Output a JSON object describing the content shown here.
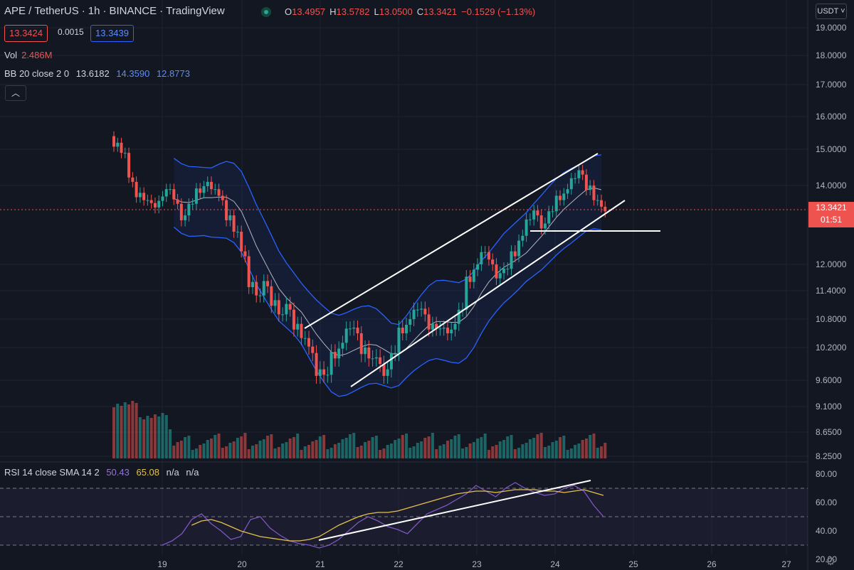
{
  "header": {
    "symbol": "APE / TetherUS",
    "interval": "1h",
    "exchange": "BINANCE",
    "source": "TradingView",
    "ohlc": {
      "o_label": "O",
      "o": "13.4957",
      "h_label": "H",
      "h": "13.5782",
      "l_label": "L",
      "l": "13.0500",
      "c_label": "C",
      "c": "13.3421",
      "change": "−0.1529 (−1.13%)"
    }
  },
  "order": {
    "bid": "13.3424",
    "spread": "0.0015",
    "ask": "13.3439"
  },
  "volume": {
    "label": "Vol",
    "value": "2.486M"
  },
  "bollinger": {
    "label": "BB 20 close 2 0",
    "basis": "13.6182",
    "upper": "14.3590",
    "lower": "12.8773"
  },
  "rsi": {
    "label": "RSI 14 close SMA 14 2",
    "rsi": "50.43",
    "sma": "65.08",
    "na1": "n/a",
    "na2": "n/a"
  },
  "currency": "USDT",
  "last_price": {
    "price": "13.3421",
    "countdown": "01:51"
  },
  "colors": {
    "bg": "#131722",
    "up": "#26a69a",
    "down": "#ef5350",
    "band": "#2962ff",
    "rsi": "#7e57c2",
    "sma": "#e6c04a"
  },
  "chart_data": {
    "type": "candlestick",
    "x_ticks": [
      "19",
      "20",
      "21",
      "22",
      "23",
      "24",
      "25",
      "26",
      "27"
    ],
    "y_ticks": [
      "19.0000",
      "18.0000",
      "17.0000",
      "16.0000",
      "15.0000",
      "14.0000",
      "12.0000",
      "11.4000",
      "10.8000",
      "10.2000",
      "9.6000",
      "9.1000",
      "8.6500",
      "8.2500"
    ],
    "rsi_ticks": [
      "80.00",
      "60.00",
      "40.00",
      "20.00"
    ],
    "close_path": [
      15.2,
      14.9,
      14.1,
      13.8,
      13.6,
      13.4,
      13.7,
      13.9,
      13.5,
      13.2,
      13.5,
      13.8,
      14.1,
      13.9,
      13.6,
      13.2,
      12.8,
      12.2,
      11.6,
      11.3,
      11.5,
      11.2,
      10.9,
      11.0,
      10.7,
      10.4,
      10.1,
      9.8,
      9.7,
      10.0,
      10.3,
      10.6,
      10.5,
      10.2,
      10.0,
      9.9,
      9.8,
      10.1,
      10.5,
      10.8,
      11.0,
      10.9,
      10.7,
      10.6,
      10.5,
      10.7,
      11.0,
      11.6,
      12.0,
      12.3,
      12.0,
      11.8,
      11.9,
      12.2,
      12.7,
      13.1,
      13.2,
      13.0,
      13.3,
      13.6,
      13.9,
      14.2,
      14.3,
      14.0,
      13.6,
      13.3
    ],
    "rsi_path": [
      30,
      33,
      38,
      48,
      52,
      45,
      40,
      34,
      36,
      48,
      50,
      42,
      37,
      33,
      31,
      30,
      28,
      30,
      34,
      40,
      46,
      50,
      47,
      43,
      41,
      38,
      45,
      52,
      55,
      58,
      62,
      66,
      72,
      68,
      64,
      70,
      74,
      70,
      67,
      65,
      66,
      70,
      72,
      68,
      58,
      50
    ],
    "rsi_sma_path": [
      36,
      38,
      41,
      44,
      47,
      48,
      46,
      43,
      40,
      38,
      36,
      35,
      34,
      33,
      33,
      34,
      36,
      40,
      44,
      47,
      50,
      52,
      53,
      53,
      54,
      56,
      58,
      60,
      62,
      64,
      66,
      67,
      68,
      68,
      67,
      68,
      69,
      69,
      69,
      68,
      68,
      67,
      68,
      69,
      67,
      65
    ]
  }
}
